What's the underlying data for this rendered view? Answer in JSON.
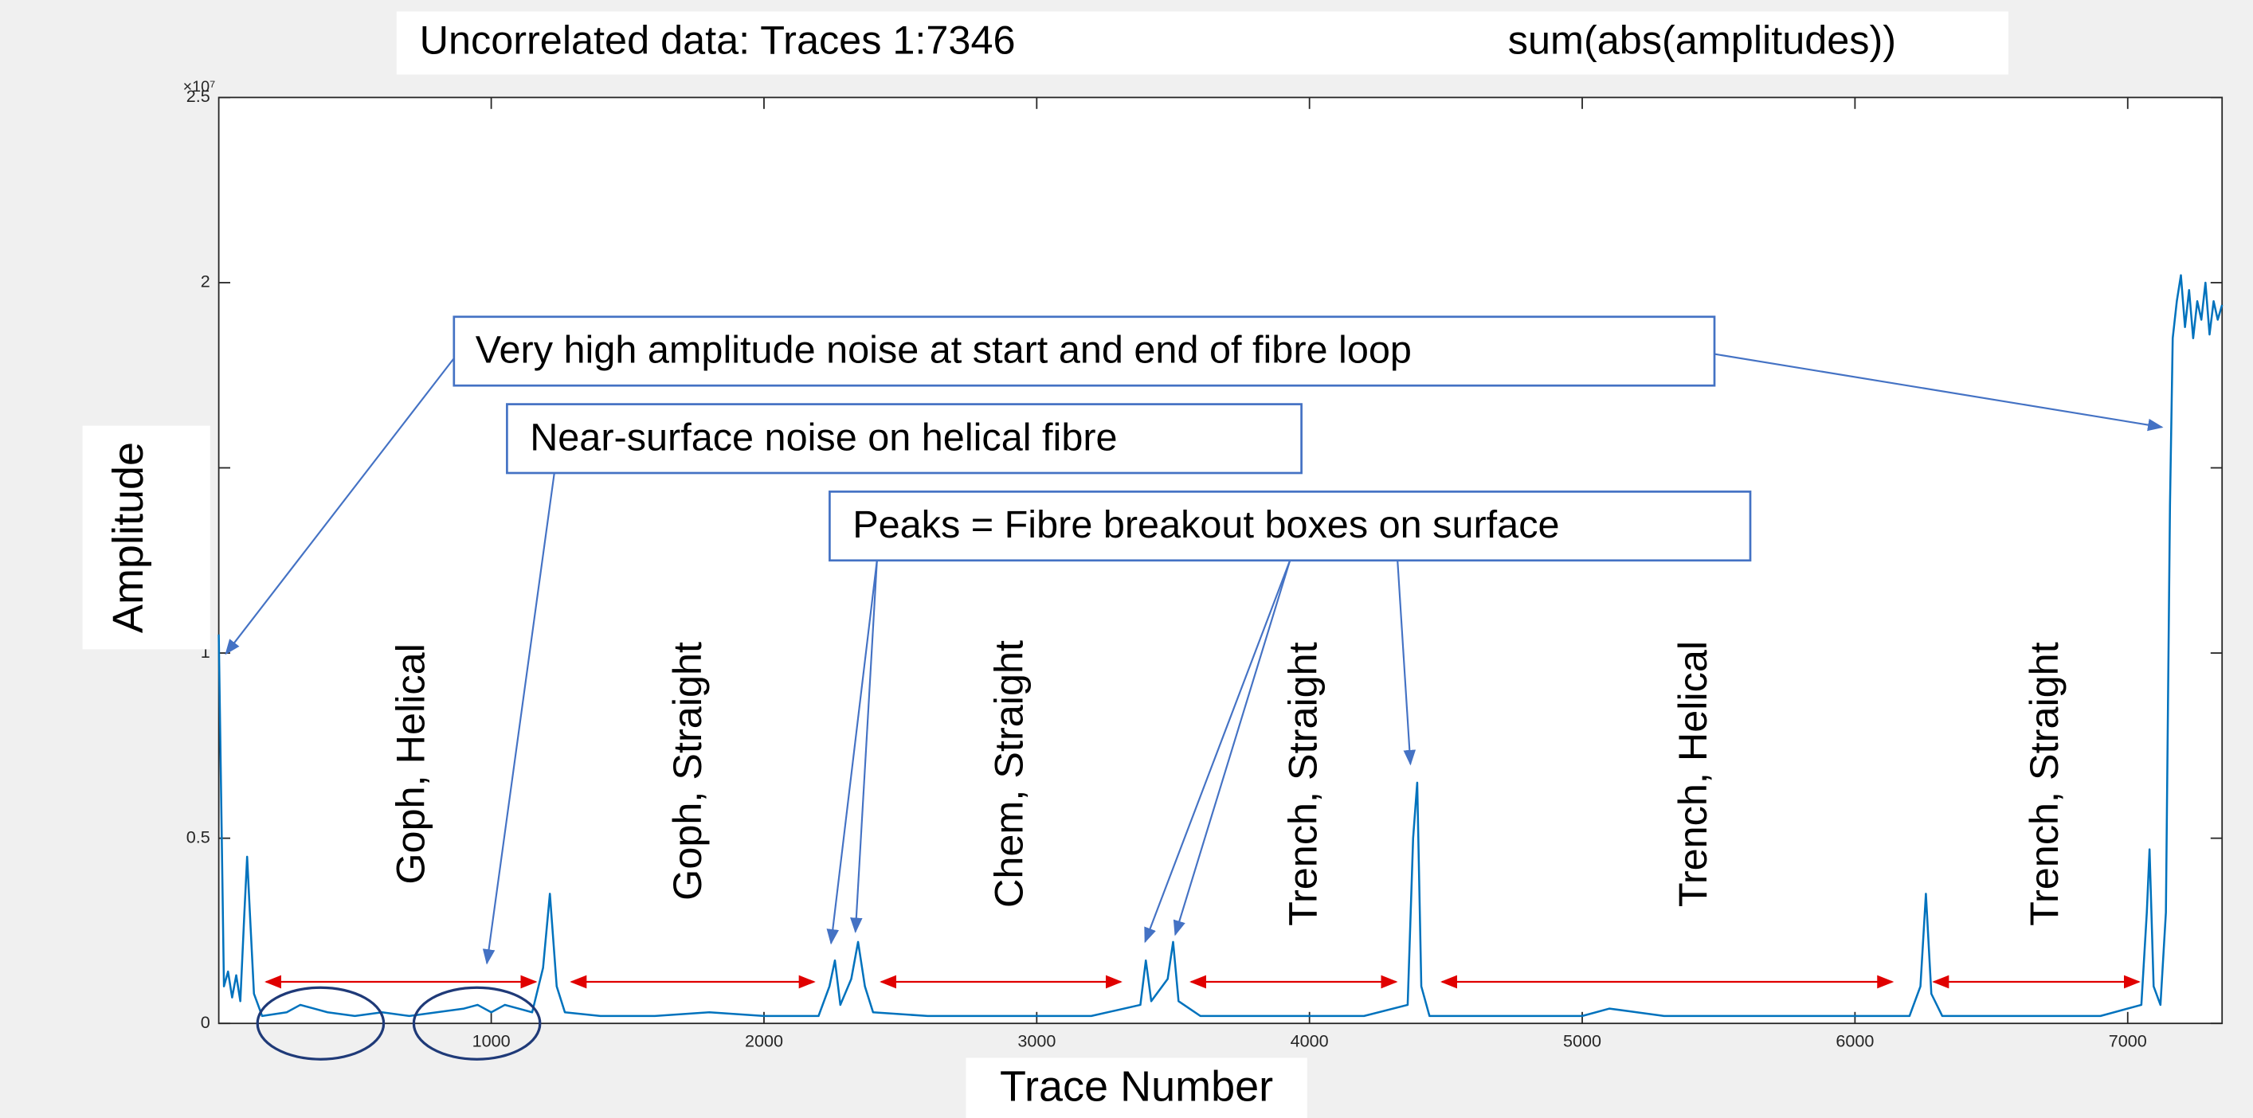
{
  "chart_data": {
    "type": "line",
    "title": "Uncorrelated data: Traces 1:7346",
    "subtitle": "sum(abs(amplitudes))",
    "x_label": "Trace Number",
    "y_label": "Amplitude",
    "y_exponent": "×10⁷",
    "xlim": [
      1,
      7346
    ],
    "ylim": [
      0,
      2.5
    ],
    "xticks": [
      1000,
      2000,
      3000,
      4000,
      5000,
      6000,
      7000
    ],
    "yticks": [
      0,
      0.5,
      1,
      1.5,
      2,
      2.5
    ],
    "grid": false,
    "x": [
      1,
      10,
      20,
      35,
      50,
      65,
      80,
      95,
      105,
      115,
      130,
      160,
      250,
      300,
      350,
      400,
      500,
      600,
      700,
      800,
      900,
      950,
      1000,
      1050,
      1100,
      1150,
      1190,
      1215,
      1240,
      1270,
      1400,
      1600,
      1800,
      2000,
      2200,
      2240,
      2260,
      2280,
      2320,
      2345,
      2370,
      2400,
      2600,
      2800,
      3000,
      3200,
      3380,
      3400,
      3420,
      3480,
      3500,
      3520,
      3600,
      3800,
      4000,
      4200,
      4360,
      4380,
      4395,
      4410,
      4440,
      4700,
      5000,
      5100,
      5300,
      5600,
      5900,
      6200,
      6240,
      6260,
      6280,
      6320,
      6600,
      6900,
      7050,
      7070,
      7080,
      7095,
      7120,
      7140,
      7155,
      7165,
      7180,
      7195,
      7210,
      7225,
      7240,
      7255,
      7270,
      7285,
      7300,
      7315,
      7330,
      7346
    ],
    "series": [
      {
        "name": "sum(abs(amplitudes))",
        "color": "#0072bd",
        "values": [
          1.05,
          0.6,
          0.1,
          0.14,
          0.07,
          0.13,
          0.06,
          0.3,
          0.45,
          0.3,
          0.08,
          0.02,
          0.03,
          0.05,
          0.04,
          0.03,
          0.02,
          0.03,
          0.02,
          0.03,
          0.04,
          0.05,
          0.03,
          0.05,
          0.04,
          0.03,
          0.15,
          0.35,
          0.1,
          0.03,
          0.02,
          0.02,
          0.03,
          0.02,
          0.02,
          0.1,
          0.17,
          0.05,
          0.12,
          0.22,
          0.1,
          0.03,
          0.02,
          0.02,
          0.02,
          0.02,
          0.05,
          0.17,
          0.06,
          0.12,
          0.22,
          0.06,
          0.02,
          0.02,
          0.02,
          0.02,
          0.05,
          0.5,
          0.65,
          0.1,
          0.02,
          0.02,
          0.02,
          0.04,
          0.02,
          0.02,
          0.02,
          0.02,
          0.1,
          0.35,
          0.08,
          0.02,
          0.02,
          0.02,
          0.05,
          0.3,
          0.47,
          0.1,
          0.05,
          0.3,
          1.4,
          1.85,
          1.95,
          2.02,
          1.88,
          1.98,
          1.85,
          1.95,
          1.9,
          2.0,
          1.86,
          1.95,
          1.9,
          1.94
        ]
      }
    ],
    "annotations": [
      "Very high amplitude noise at start and end of fibre loop",
      "Near-surface noise on helical fibre",
      "Peaks = Fibre breakout boxes on surface"
    ],
    "segments": [
      "Goph, Helical",
      "Goph, Straight",
      "Chem, Straight",
      "Trench, Straight",
      "Trench, Helical",
      "Trench, Straight"
    ]
  }
}
